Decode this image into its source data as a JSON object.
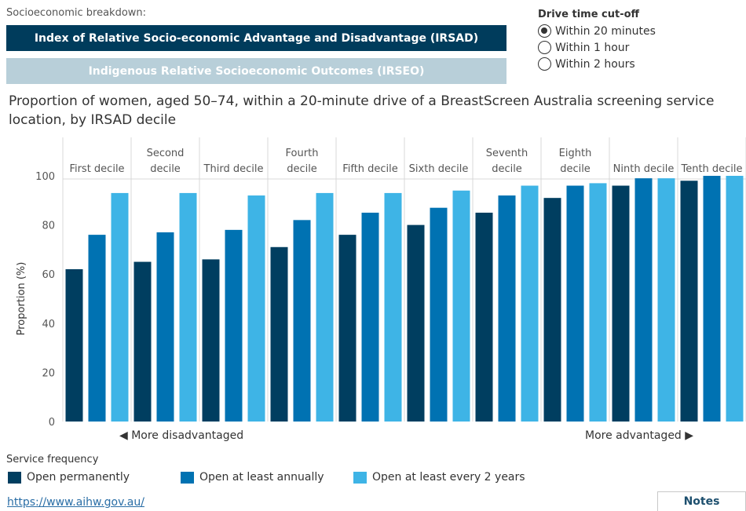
{
  "breakdown": {
    "label": "Socioeconomic breakdown:",
    "active_tab": "Index of Relative Socio-economic Advantage and Disadvantage (IRSAD)",
    "inactive_tab": "Indigenous Relative Socioeconomic Outcomes (IRSEO)"
  },
  "drive_time": {
    "title": "Drive time cut-off",
    "options": [
      {
        "label": "Within 20 minutes",
        "selected": true
      },
      {
        "label": "Within 1 hour",
        "selected": false
      },
      {
        "label": "Within 2 hours",
        "selected": false
      }
    ]
  },
  "colors": {
    "active_tab": "#003c5c",
    "inactive_tab": "#b8cfd9",
    "series": [
      "#003e60",
      "#0072b2",
      "#3eb4e6"
    ]
  },
  "chart_data": {
    "type": "bar",
    "title": "Proportion of women, aged 50–74, within a 20-minute drive of a BreastScreen Australia screening service location, by IRSAD decile",
    "categories": [
      [
        "First decile"
      ],
      [
        "Second",
        "decile"
      ],
      [
        "Third decile"
      ],
      [
        "Fourth",
        "decile"
      ],
      [
        "Fifth decile"
      ],
      [
        "Sixth decile"
      ],
      [
        "Seventh",
        "decile"
      ],
      [
        "Eighth",
        "decile"
      ],
      [
        "Ninth decile"
      ],
      [
        "Tenth decile"
      ]
    ],
    "series": [
      {
        "name": "Open permanently",
        "values": [
          62,
          65,
          66,
          71,
          76,
          80,
          85,
          91,
          96,
          98
        ]
      },
      {
        "name": "Open at least annually",
        "values": [
          76,
          77,
          78,
          82,
          85,
          87,
          92,
          96,
          99,
          100
        ]
      },
      {
        "name": "Open at least every 2 years",
        "values": [
          93,
          93,
          92,
          93,
          93,
          94,
          96,
          97,
          99,
          100
        ]
      }
    ],
    "ylabel": "Proportion (%)",
    "ylim": [
      0,
      100
    ],
    "yticks": [
      0,
      20,
      40,
      60,
      80,
      100
    ],
    "grid": false,
    "legend_title": "Service frequency",
    "legend_position": "bottom"
  },
  "annotations": {
    "left": "◀ More disadvantaged",
    "right": "More advantaged ▶"
  },
  "footer": {
    "url": "https://www.aihw.gov.au/",
    "notes": "Notes"
  }
}
